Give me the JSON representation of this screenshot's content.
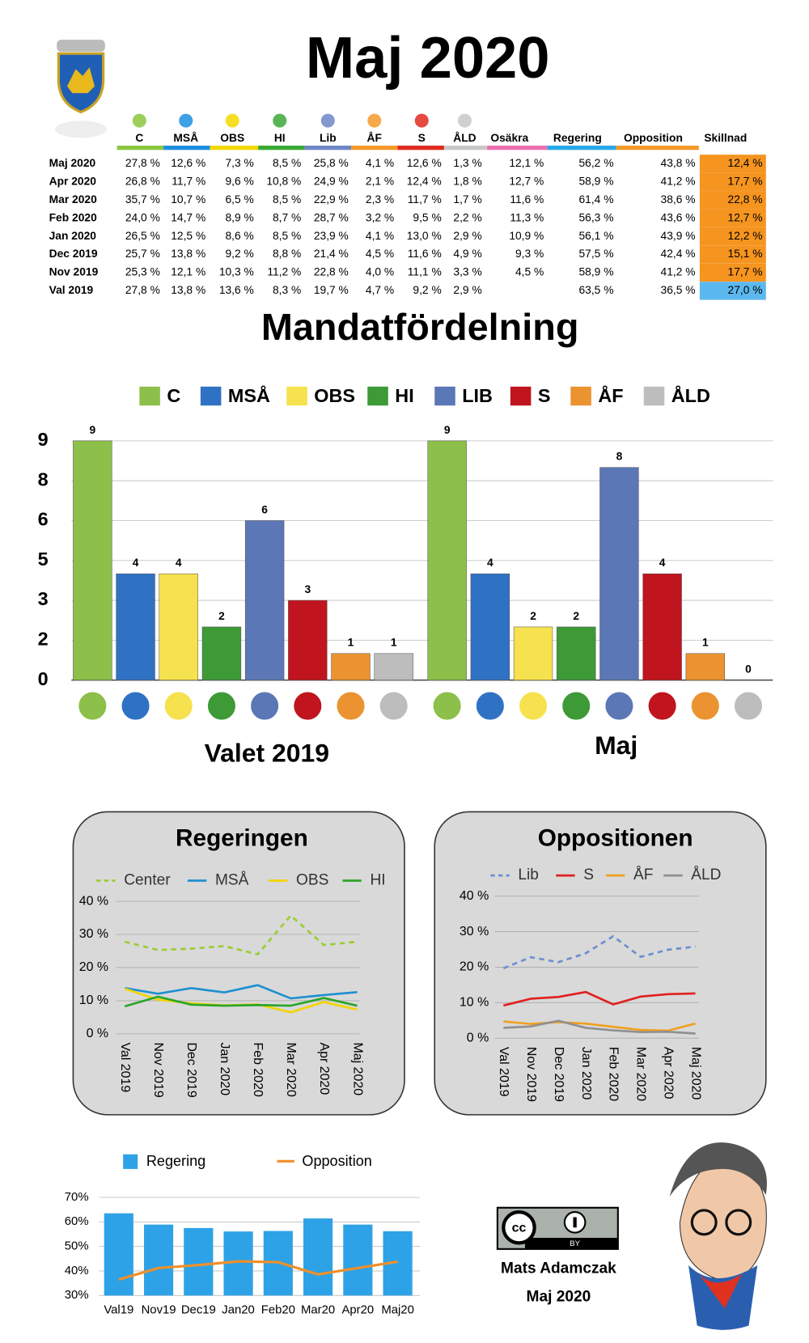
{
  "title": "Maj 2020",
  "table": {
    "columns": [
      "C",
      "MSÅ",
      "OBS",
      "HI",
      "Lib",
      "ÅF",
      "S",
      "ÅLD",
      "Osäkra",
      "Regering",
      "Opposition",
      "Skillnad"
    ],
    "header_colors": [
      "#8cc63f",
      "#1e8fe0",
      "#f5d800",
      "#3aa935",
      "#6f86c8",
      "#f39a2a",
      "#e02a1e",
      "#c8c8c8",
      "#ec6fb0",
      "#29a8e8",
      "#f39a2a"
    ],
    "skillnad_colors": [
      "#f5941f",
      "#f5941f",
      "#f5941f",
      "#f5941f",
      "#f5941f",
      "#f5941f",
      "#f5941f",
      "#5bb8ee"
    ],
    "rows": [
      [
        "Maj 2020",
        "27,8 %",
        "12,6 %",
        "7,3 %",
        "8,5 %",
        "25,8 %",
        "4,1 %",
        "12,6 %",
        "1,3 %",
        "12,1 %",
        "56,2 %",
        "43,8 %",
        "12,4 %"
      ],
      [
        "Apr 2020",
        "26,8 %",
        "11,7 %",
        "9,6 %",
        "10,8 %",
        "24,9 %",
        "2,1 %",
        "12,4 %",
        "1,8 %",
        "12,7 %",
        "58,9 %",
        "41,2 %",
        "17,7 %"
      ],
      [
        "Mar 2020",
        "35,7 %",
        "10,7 %",
        "6,5 %",
        "8,5 %",
        "22,9 %",
        "2,3 %",
        "11,7 %",
        "1,7 %",
        "11,6 %",
        "61,4 %",
        "38,6 %",
        "22,8 %"
      ],
      [
        "Feb 2020",
        "24,0 %",
        "14,7 %",
        "8,9 %",
        "8,7 %",
        "28,7 %",
        "3,2 %",
        "9,5 %",
        "2,2 %",
        "11,3 %",
        "56,3 %",
        "43,6 %",
        "12,7 %"
      ],
      [
        "Jan 2020",
        "26,5 %",
        "12,5 %",
        "8,6 %",
        "8,5 %",
        "23,9 %",
        "4,1 %",
        "13,0 %",
        "2,9 %",
        "10,9 %",
        "56,1 %",
        "43,9 %",
        "12,2 %"
      ],
      [
        "Dec 2019",
        "25,7 %",
        "13,8 %",
        "9,2 %",
        "8,8 %",
        "21,4 %",
        "4,5 %",
        "11,6 %",
        "4,9 %",
        "9,3 %",
        "57,5 %",
        "42,4 %",
        "15,1 %"
      ],
      [
        "Nov 2019",
        "25,3 %",
        "12,1 %",
        "10,3 %",
        "11,2 %",
        "22,8 %",
        "4,0 %",
        "11,1 %",
        "3,3 %",
        "4,5 %",
        "58,9 %",
        "41,2 %",
        "17,7 %"
      ],
      [
        "Val 2019",
        "27,8 %",
        "13,8 %",
        "13,6 %",
        "8,3 %",
        "19,7 %",
        "4,7 %",
        "9,2 %",
        "2,9 %",
        null,
        "63,5 %",
        "36,5 %",
        "27,0 %"
      ]
    ]
  },
  "chart_data": [
    {
      "type": "bar",
      "title": "Mandatfördelning",
      "categories": [
        "Valet 2019",
        "Maj"
      ],
      "ylim": [
        0,
        9
      ],
      "yticks": [
        0,
        {
          "value": 1.5,
          "label": "2"
        },
        3,
        {
          "value": 4.5,
          "label": "5"
        },
        6,
        {
          "value": 7.5,
          "label": "8"
        },
        9
      ],
      "grid": true,
      "series": [
        {
          "name": "C",
          "color": "#8cc04a",
          "values": [
            9,
            9
          ]
        },
        {
          "name": "MSÅ",
          "color": "#2f72c4",
          "values": [
            4,
            4
          ]
        },
        {
          "name": "OBS",
          "color": "#f6e24e",
          "values": [
            4,
            2
          ]
        },
        {
          "name": "HI",
          "color": "#3d9a36",
          "values": [
            2,
            2
          ]
        },
        {
          "name": "LIB",
          "color": "#5b77b6",
          "values": [
            6,
            8
          ]
        },
        {
          "name": "S",
          "color": "#c0141e",
          "values": [
            3,
            4
          ]
        },
        {
          "name": "ÅF",
          "color": "#eb9330",
          "values": [
            1,
            1
          ]
        },
        {
          "name": "ÅLD",
          "color": "#bdbdbd",
          "values": [
            1,
            0
          ]
        }
      ]
    },
    {
      "type": "line",
      "title": "Regeringen",
      "categories": [
        "Val 2019",
        "Nov 2019",
        "Dec 2019",
        "Jan 2020",
        "Feb 2020",
        "Mar 2020",
        "Apr 2020",
        "Maj 2020"
      ],
      "ylim": [
        0,
        40
      ],
      "yticks": [
        {
          "value": 0,
          "label": "0 %"
        },
        {
          "value": 10,
          "label": "10 %"
        },
        {
          "value": 20,
          "label": "20 %"
        },
        {
          "value": 30,
          "label": "30 %"
        },
        {
          "value": 40,
          "label": "40 %"
        }
      ],
      "grid": true,
      "series": [
        {
          "name": "Center",
          "color": "#9acd32",
          "dashed": true,
          "values": [
            27.8,
            25.3,
            25.7,
            26.5,
            24.0,
            35.7,
            26.8,
            27.8
          ]
        },
        {
          "name": "MSÅ",
          "color": "#1e90d0",
          "values": [
            13.8,
            12.1,
            13.8,
            12.5,
            14.7,
            10.7,
            11.7,
            12.6
          ]
        },
        {
          "name": "OBS",
          "color": "#f2d400",
          "values": [
            13.6,
            10.3,
            9.2,
            8.6,
            8.9,
            6.5,
            9.6,
            7.3
          ]
        },
        {
          "name": "HI",
          "color": "#2aa52a",
          "values": [
            8.3,
            11.2,
            8.8,
            8.5,
            8.7,
            8.5,
            10.8,
            8.5
          ]
        }
      ]
    },
    {
      "type": "line",
      "title": "Oppositionen",
      "categories": [
        "Val 2019",
        "Nov 2019",
        "Dec 2019",
        "Jan 2020",
        "Feb 2020",
        "Mar 2020",
        "Apr 2020",
        "Maj 2020"
      ],
      "ylim": [
        0,
        40
      ],
      "yticks": [
        {
          "value": 0,
          "label": "0 %"
        },
        {
          "value": 10,
          "label": "10 %"
        },
        {
          "value": 20,
          "label": "20 %"
        },
        {
          "value": 30,
          "label": "30 %"
        },
        {
          "value": 40,
          "label": "40 %"
        }
      ],
      "grid": true,
      "series": [
        {
          "name": "Lib",
          "color": "#6a8fd0",
          "dashed": true,
          "values": [
            19.7,
            22.8,
            21.4,
            23.9,
            28.7,
            22.9,
            24.9,
            25.8
          ]
        },
        {
          "name": "S",
          "color": "#e02020",
          "values": [
            9.2,
            11.1,
            11.6,
            13.0,
            9.5,
            11.7,
            12.4,
            12.6
          ]
        },
        {
          "name": "ÅF",
          "color": "#f0a020",
          "values": [
            4.7,
            4.0,
            4.5,
            4.1,
            3.2,
            2.3,
            2.1,
            4.1
          ]
        },
        {
          "name": "ÅLD",
          "color": "#909090",
          "values": [
            2.9,
            3.3,
            4.9,
            2.9,
            2.2,
            1.7,
            1.8,
            1.3
          ]
        }
      ]
    },
    {
      "type": "combo",
      "categories": [
        "Val19",
        "Nov19",
        "Dec19",
        "Jan20",
        "Feb20",
        "Mar20",
        "Apr20",
        "Maj20"
      ],
      "ylim": [
        30,
        70
      ],
      "yticks": [
        {
          "value": 30,
          "label": "30%"
        },
        {
          "value": 40,
          "label": "40%"
        },
        {
          "value": 50,
          "label": "50%"
        },
        {
          "value": 60,
          "label": "60%"
        },
        {
          "value": 70,
          "label": "70%"
        }
      ],
      "grid": true,
      "series": [
        {
          "name": "Regering",
          "type": "bar",
          "color": "#2ea2e6",
          "values": [
            63.5,
            58.9,
            57.5,
            56.1,
            56.3,
            61.4,
            58.9,
            56.2
          ]
        },
        {
          "name": "Opposition",
          "type": "line",
          "color": "#f0902a",
          "values": [
            36.5,
            41.2,
            42.4,
            43.9,
            43.6,
            38.6,
            41.2,
            43.8
          ]
        }
      ]
    }
  ],
  "footer": {
    "badge": [
      "cc",
      "BY"
    ],
    "author": "Mats Adamczak",
    "date": "Maj 2020"
  }
}
